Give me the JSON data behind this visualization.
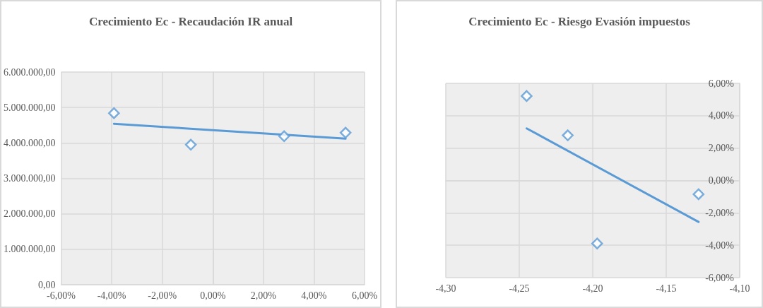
{
  "chart_data": [
    {
      "type": "scatter",
      "title": "Crecimiento Ec - Recaudación IR anual",
      "marker": "diamond",
      "grid": true,
      "xlim": [
        -6,
        6
      ],
      "xticks": [
        {
          "value": -6,
          "label": "-6,00%"
        },
        {
          "value": -4,
          "label": "-4,00%"
        },
        {
          "value": -2,
          "label": "-2,00%"
        },
        {
          "value": 0,
          "label": "0,00%"
        },
        {
          "value": 2,
          "label": "2,00%"
        },
        {
          "value": 4,
          "label": "4,00%"
        },
        {
          "value": 6,
          "label": "6,00%"
        }
      ],
      "ylim": [
        0,
        6000000
      ],
      "yticks": [
        {
          "value": 0,
          "label": "0,00"
        },
        {
          "value": 1000000,
          "label": "1.000.000,00"
        },
        {
          "value": 2000000,
          "label": "2.000.000,00"
        },
        {
          "value": 3000000,
          "label": "3.000.000,00"
        },
        {
          "value": 4000000,
          "label": "4.000.000,00"
        },
        {
          "value": 5000000,
          "label": "5.000.000,00"
        },
        {
          "value": 6000000,
          "label": "6.000.000,00"
        }
      ],
      "series": [
        {
          "type": "scatter",
          "color": "#5b9bd5",
          "x": [
            -3.91,
            -0.87,
            2.82,
            5.25
          ],
          "values": [
            4840000,
            3950000,
            4190000,
            4290000
          ]
        },
        {
          "type": "line",
          "color": "#5b9bd5",
          "marker": "none",
          "line_style": "solid",
          "x": [
            -3.91,
            5.25
          ],
          "values": [
            4540000,
            4120000
          ]
        }
      ]
    },
    {
      "type": "scatter",
      "title": "Crecimiento Ec - Riesgo Evasión impuestos",
      "marker": "diamond",
      "grid": true,
      "xlim": [
        -4.3,
        -4.1
      ],
      "xticks": [
        {
          "value": -4.3,
          "label": "-4,30"
        },
        {
          "value": -4.25,
          "label": "-4,25"
        },
        {
          "value": -4.2,
          "label": "-4,20"
        },
        {
          "value": -4.15,
          "label": "-4,15"
        },
        {
          "value": -4.1,
          "label": "-4,10"
        }
      ],
      "ylim": [
        -6,
        6
      ],
      "yticks": [
        {
          "value": -6,
          "label": "-6,00%"
        },
        {
          "value": -4,
          "label": "-4,00%"
        },
        {
          "value": -2,
          "label": "-2,00%"
        },
        {
          "value": 0,
          "label": "0,00%"
        },
        {
          "value": 2,
          "label": "2,00%"
        },
        {
          "value": 4,
          "label": "4,00%"
        },
        {
          "value": 6,
          "label": "6,00%"
        }
      ],
      "series": [
        {
          "type": "scatter",
          "color": "#5b9bd5",
          "x": [
            -4.245,
            -4.217,
            -4.197,
            -4.128
          ],
          "values": [
            5.22,
            2.79,
            -3.89,
            -0.85
          ]
        },
        {
          "type": "line",
          "color": "#5b9bd5",
          "marker": "none",
          "line_style": "solid",
          "x": [
            -4.245,
            -4.128
          ],
          "values": [
            3.22,
            -2.56
          ]
        }
      ]
    }
  ]
}
